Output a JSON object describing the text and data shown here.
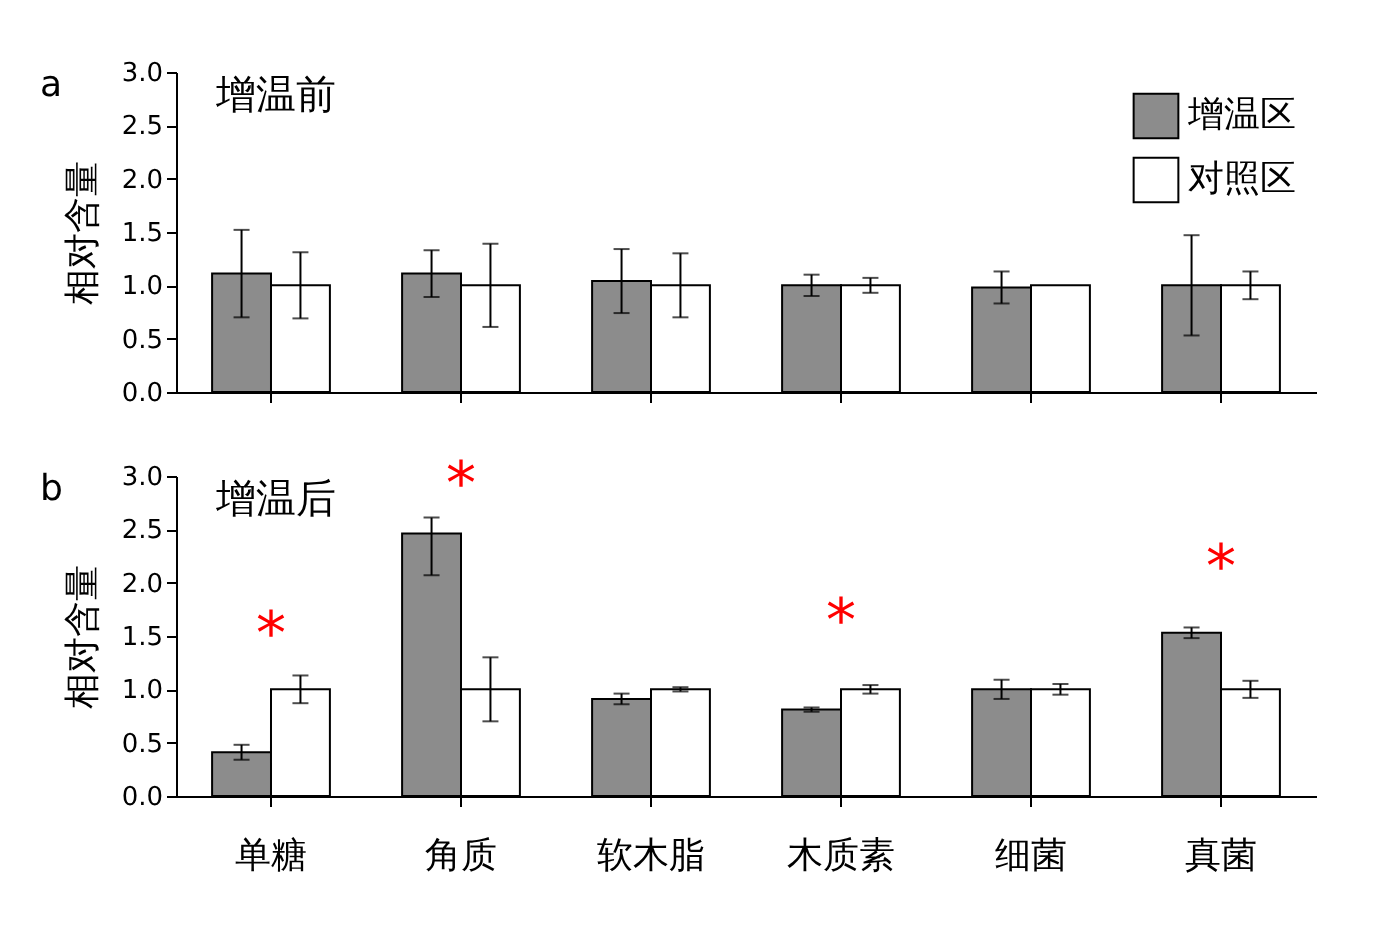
{
  "chart_data": [
    {
      "type": "bar",
      "title": "增温前",
      "ylabel": "相对含量",
      "annotations": [
        "a"
      ],
      "categories": [
        null,
        null,
        null,
        null,
        null,
        null
      ],
      "series": [
        {
          "name": "增温区",
          "color": "#8c8c8c",
          "values": [
            1.11,
            1.11,
            1.04,
            1.0,
            0.98,
            1.0
          ],
          "errors": [
            0.41,
            0.22,
            0.3,
            0.1,
            0.15,
            0.47
          ]
        },
        {
          "name": "对照区",
          "color": "#ffffff",
          "values": [
            1.0,
            1.0,
            1.0,
            1.0,
            1.0,
            1.0
          ],
          "errors": [
            0.31,
            0.39,
            0.3,
            0.07,
            null,
            0.13
          ]
        }
      ],
      "ylim": [
        0,
        3
      ],
      "yticks": [
        {
          "value": 0,
          "label": "0.0"
        },
        {
          "value": 0.5,
          "label": "0.5"
        },
        {
          "value": 1,
          "label": "1.0"
        },
        {
          "value": 1.5,
          "label": "1.5"
        },
        {
          "value": 2,
          "label": "2.0"
        },
        {
          "value": 2.5,
          "label": "2.5"
        },
        {
          "value": 3,
          "label": "3.0"
        }
      ],
      "legend": "top right",
      "tick_labels": "y",
      "grid": false
    },
    {
      "type": "bar",
      "title": "增温后",
      "ylabel": "相对含量",
      "annotations": [
        "b",
        "*",
        "*",
        "*",
        "*"
      ],
      "categories": [
        "单糖",
        "角质",
        "软木脂",
        "木质素",
        "细菌",
        "真菌"
      ],
      "series": [
        {
          "name": "增温区",
          "color": "#8c8c8c",
          "values": [
            0.41,
            2.46,
            0.91,
            0.81,
            1.0,
            1.53
          ],
          "errors": [
            0.07,
            [
              2.07,
              2.61
            ],
            0.05,
            0.02,
            0.09,
            0.05
          ]
        },
        {
          "name": "对照区",
          "color": "#ffffff",
          "values": [
            1.0,
            1.0,
            1.0,
            1.0,
            1.0,
            1.0
          ],
          "errors": [
            0.13,
            0.3,
            0.02,
            0.04,
            0.05,
            0.08
          ]
        }
      ],
      "ylim": [
        0,
        3
      ],
      "yticks": [
        {
          "value": 0,
          "label": "0.0"
        },
        {
          "value": 0.5,
          "label": "0.5"
        },
        {
          "value": 1,
          "label": "1.0"
        },
        {
          "value": 1.5,
          "label": "1.5"
        },
        {
          "value": 2,
          "label": "2.0"
        },
        {
          "value": 2.5,
          "label": "2.5"
        },
        {
          "value": 3,
          "label": "3.0"
        }
      ],
      "legend": false,
      "grid": false
    }
  ]
}
